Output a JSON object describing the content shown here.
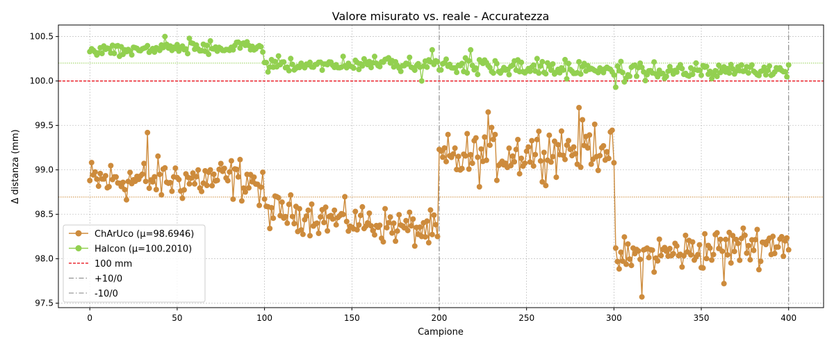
{
  "chart_data": {
    "type": "line",
    "title": "Valore misurato vs. reale - Accuratezza",
    "xlabel": "Campione",
    "ylabel": "Δ distanza (mm)",
    "xlim": [
      -18,
      420
    ],
    "ylim": [
      97.45,
      100.63
    ],
    "xticks": [
      0,
      50,
      100,
      150,
      200,
      250,
      300,
      350,
      400
    ],
    "yticks": [
      97.5,
      98.0,
      98.5,
      99.0,
      99.5,
      100.0,
      100.5
    ],
    "ytick_labels": [
      "97.5",
      "98.0",
      "98.5",
      "99.0",
      "99.5",
      "100.0",
      "100.5"
    ],
    "grid": true,
    "legend_position": "lower-left",
    "series": [
      {
        "name": "ChArUco (μ=98.6946)",
        "color": "#cd8b3c",
        "mean": 98.6946,
        "segments": [
          {
            "x_start": 0,
            "x_end": 100,
            "start": 98.88,
            "end": 98.9,
            "noise": 0.17
          },
          {
            "x_start": 100,
            "x_end": 200,
            "start": 98.55,
            "end": 98.3,
            "noise": 0.14
          },
          {
            "x_start": 200,
            "x_end": 300,
            "start": 99.1,
            "end": 99.3,
            "noise": 0.2
          },
          {
            "x_start": 300,
            "x_end": 400,
            "start": 98.0,
            "end": 98.2,
            "noise": 0.16
          }
        ],
        "key_points": [
          [
            0,
            98.88
          ],
          [
            33,
            99.42
          ],
          [
            97,
            98.6
          ],
          [
            199,
            98.25
          ],
          [
            200,
            99.23
          ],
          [
            228,
            99.65
          ],
          [
            280,
            99.7
          ],
          [
            300,
            99.08
          ],
          [
            301,
            98.12
          ],
          [
            316,
            97.57
          ],
          [
            363,
            97.72
          ],
          [
            400,
            98.1
          ]
        ]
      },
      {
        "name": "Halcon (μ=100.2010)",
        "color": "#92d050",
        "mean": 100.201,
        "segments": [
          {
            "x_start": 0,
            "x_end": 100,
            "start": 100.35,
            "end": 100.38,
            "noise": 0.05
          },
          {
            "x_start": 100,
            "x_end": 200,
            "start": 100.18,
            "end": 100.2,
            "noise": 0.05
          },
          {
            "x_start": 200,
            "x_end": 300,
            "start": 100.17,
            "end": 100.13,
            "noise": 0.07
          },
          {
            "x_start": 300,
            "x_end": 400,
            "start": 100.1,
            "end": 100.12,
            "noise": 0.06
          }
        ],
        "key_points": [
          [
            0,
            100.33
          ],
          [
            43,
            100.5
          ],
          [
            57,
            100.48
          ],
          [
            190,
            100.0
          ],
          [
            196,
            100.35
          ],
          [
            218,
            100.35
          ],
          [
            301,
            99.93
          ],
          [
            400,
            100.18
          ]
        ]
      }
    ],
    "hlines": [
      {
        "name": "100 mm",
        "value": 100.0,
        "color": "#e8000b"
      }
    ],
    "vlines": [
      {
        "name": "+10/0",
        "value": 200,
        "color": "#7f7f7f"
      },
      {
        "name": "-10/0",
        "value": 400,
        "color": "#7f7f7f"
      }
    ],
    "legend": [
      "ChArUco (μ=98.6946)",
      "Halcon (μ=100.2010)",
      "100 mm",
      "+10/0",
      "-10/0"
    ]
  }
}
